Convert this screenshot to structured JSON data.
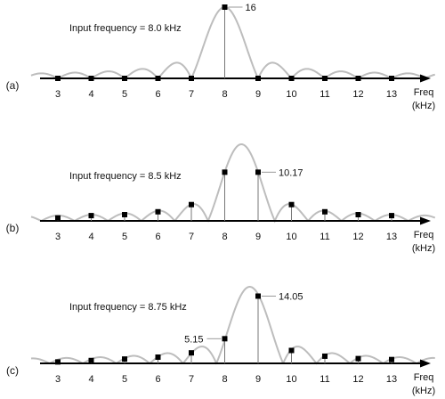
{
  "chart_data": [
    {
      "type": "scatter",
      "panel": "(a)",
      "annotation": "Input frequency  = 8.0 kHz",
      "xlabel_line1": "Freq",
      "xlabel_line2": "(kHz)",
      "x_ticks": [
        3,
        4,
        5,
        6,
        7,
        8,
        9,
        10,
        11,
        12,
        13
      ],
      "xlim": [
        2.2,
        14.3
      ],
      "ylim": [
        0,
        16
      ],
      "points": [
        {
          "x": 3,
          "y": 0
        },
        {
          "x": 4,
          "y": 0
        },
        {
          "x": 5,
          "y": 0
        },
        {
          "x": 6,
          "y": 0
        },
        {
          "x": 7,
          "y": 0
        },
        {
          "x": 8,
          "y": 16
        },
        {
          "x": 9,
          "y": 0
        },
        {
          "x": 10,
          "y": 0
        },
        {
          "x": 11,
          "y": 0
        },
        {
          "x": 12,
          "y": 0
        },
        {
          "x": 13,
          "y": 0
        }
      ],
      "callouts": [
        {
          "x": 8,
          "text": "16"
        }
      ]
    },
    {
      "type": "scatter",
      "panel": "(b)",
      "annotation": "Input frequency  = 8.5 kHz",
      "xlabel_line1": "Freq",
      "xlabel_line2": "(kHz)",
      "x_ticks": [
        3,
        4,
        5,
        6,
        7,
        8,
        9,
        10,
        11,
        12,
        13
      ],
      "xlim": [
        2.2,
        14.3
      ],
      "ylim": [
        0,
        16
      ],
      "points": [
        {
          "x": 3,
          "y": 0.6
        },
        {
          "x": 4,
          "y": 1.1
        },
        {
          "x": 5,
          "y": 1.3
        },
        {
          "x": 6,
          "y": 1.9
        },
        {
          "x": 7,
          "y": 3.4
        },
        {
          "x": 8,
          "y": 10.17
        },
        {
          "x": 9,
          "y": 10.17
        },
        {
          "x": 10,
          "y": 3.4
        },
        {
          "x": 11,
          "y": 1.9
        },
        {
          "x": 12,
          "y": 1.3
        },
        {
          "x": 13,
          "y": 1.1
        }
      ],
      "callouts": [
        {
          "x": 9,
          "text": "10.17"
        }
      ]
    },
    {
      "type": "scatter",
      "panel": "(c)",
      "annotation": "Input frequency  = 8.75 kHz",
      "xlabel_line1": "Freq",
      "xlabel_line2": "(kHz)",
      "x_ticks": [
        3,
        4,
        5,
        6,
        7,
        8,
        9,
        10,
        11,
        12,
        13
      ],
      "xlim": [
        2.2,
        14.3
      ],
      "ylim": [
        0,
        16
      ],
      "points": [
        {
          "x": 3,
          "y": 0.3
        },
        {
          "x": 4,
          "y": 0.6
        },
        {
          "x": 5,
          "y": 0.9
        },
        {
          "x": 6,
          "y": 1.3
        },
        {
          "x": 7,
          "y": 2.2
        },
        {
          "x": 8,
          "y": 5.15
        },
        {
          "x": 9,
          "y": 14.05
        },
        {
          "x": 10,
          "y": 2.7
        },
        {
          "x": 11,
          "y": 1.5
        },
        {
          "x": 12,
          "y": 1.0
        },
        {
          "x": 13,
          "y": 0.8
        }
      ],
      "callouts": [
        {
          "x": 8,
          "text": "5.15"
        },
        {
          "x": 9,
          "text": "14.05"
        }
      ]
    }
  ]
}
